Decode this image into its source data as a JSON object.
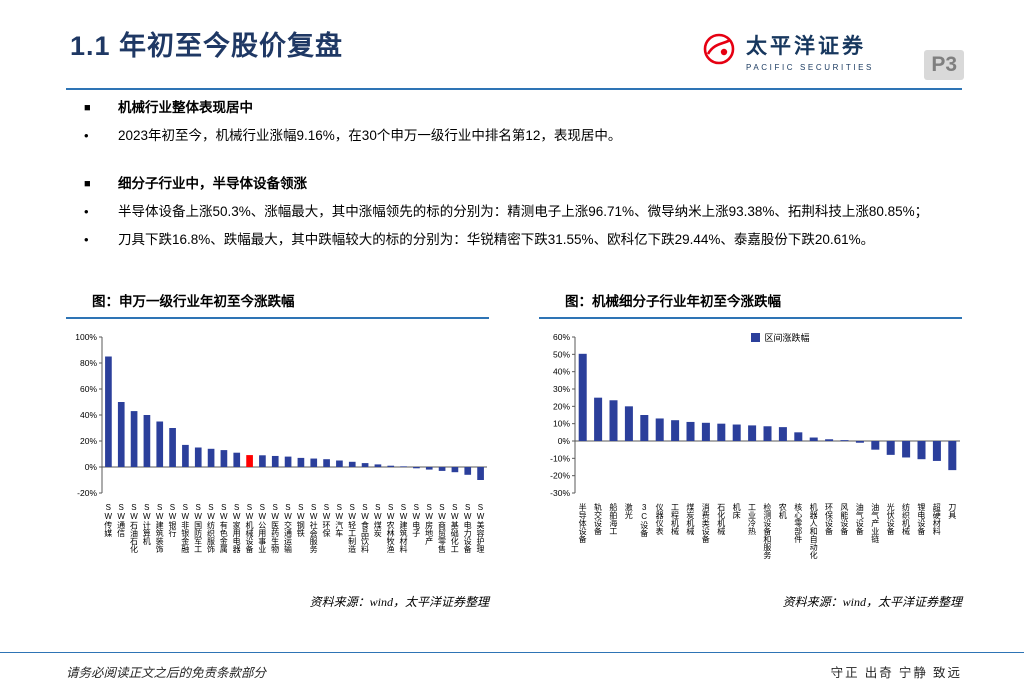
{
  "header": {
    "title": "1.1 年初至今股价复盘",
    "page_number": "P3",
    "brand": {
      "name_cn": "太平洋证券",
      "name_en": "PACIFIC SECURITIES"
    }
  },
  "icons": {
    "square_bullet": "■",
    "dot_bullet": "•"
  },
  "bullets": [
    {
      "type": "square",
      "text": "机械行业整体表现居中"
    },
    {
      "type": "dot",
      "text": "2023年初至今，机械行业涨幅9.16%，在30个申万一级行业中排名第12，表现居中。"
    },
    {
      "type": "square",
      "text": "细分子行业中，半导体设备领涨"
    },
    {
      "type": "dot",
      "text": "半导体设备上涨50.3%、涨幅最大，其中涨幅领先的标的分别为：精测电子上涨96.71%、微导纳米上涨93.38%、拓荆科技上涨80.85%；"
    },
    {
      "type": "dot",
      "text": "刀具下跌16.8%、跌幅最大，其中跌幅较大的标的分别为：华锐精密下跌31.55%、欧科亿下跌29.44%、泰嘉股份下跌20.61%。"
    }
  ],
  "chart_data": [
    {
      "type": "bar",
      "title": "图：申万一级行业年初至今涨跌幅",
      "categories": [
        "SW传媒",
        "SW通信",
        "SW石油石化",
        "SW计算机",
        "SW建筑装饰",
        "SW银行",
        "SW非银金融",
        "SW国防军工",
        "SW纺织服饰",
        "SW有色金属",
        "SW家用电器",
        "SW机械设备",
        "SW公用事业",
        "SW医药生物",
        "SW交通运输",
        "SW钢铁",
        "SW社会服务",
        "SW环保",
        "SW汽车",
        "SW轻工制造",
        "SW食品饮料",
        "SW煤炭",
        "SW农林牧渔",
        "SW建筑材料",
        "SW电子",
        "SW房地产",
        "SW商贸零售",
        "SW基础化工",
        "SW电力设备",
        "SW美容护理"
      ],
      "values": [
        85,
        50,
        43,
        40,
        35,
        30,
        17,
        15,
        14,
        13,
        11,
        9.16,
        9,
        8.5,
        8,
        7,
        6.5,
        6,
        5,
        4,
        3,
        2,
        1,
        0.5,
        -1,
        -2,
        -3,
        -4,
        -6,
        -10
      ],
      "highlight_index": 11,
      "ylim": [
        -20,
        100
      ],
      "ytick": 20,
      "grid": false,
      "legend_position": "none"
    },
    {
      "type": "bar",
      "title": "图：机械细分子行业年初至今涨跌幅",
      "legend": [
        "区间涨跌幅"
      ],
      "categories": [
        "半导体设备",
        "轨交设备",
        "船舶海工",
        "激光",
        "3C设备",
        "仪器仪表",
        "工程机械",
        "煤炭机械",
        "消费类设备",
        "石化机械",
        "机床",
        "工业冷热",
        "检测设备和服务",
        "农机",
        "核心零部件",
        "机器人和自动化",
        "环保设备",
        "风能设备",
        "油气设备",
        "油气产业链",
        "光伏设备",
        "纺织机械",
        "锂电设备",
        "超硬材料",
        "刀具"
      ],
      "values": [
        50.3,
        25,
        23.5,
        20,
        15,
        13,
        12,
        11,
        10.5,
        10,
        9.5,
        9,
        8.5,
        8,
        5,
        2,
        1,
        0.5,
        -1,
        -5,
        -8,
        -9.5,
        -10.5,
        -11.5,
        -16.8
      ],
      "ylim": [
        -30,
        60
      ],
      "ytick": 10,
      "grid": false,
      "legend_position": "top"
    }
  ],
  "source_note": "资料来源：wind，太平洋证券整理",
  "footer": {
    "left": "请务必阅读正文之后的免责条款部分",
    "right": "守正 出奇 宁静 致远"
  },
  "colors": {
    "bar": "#2B3F9B",
    "highlight": "#FF0000",
    "accent_rule": "#2E74B5",
    "title_blue": "#1F3864",
    "brand_red": "#E60012"
  }
}
